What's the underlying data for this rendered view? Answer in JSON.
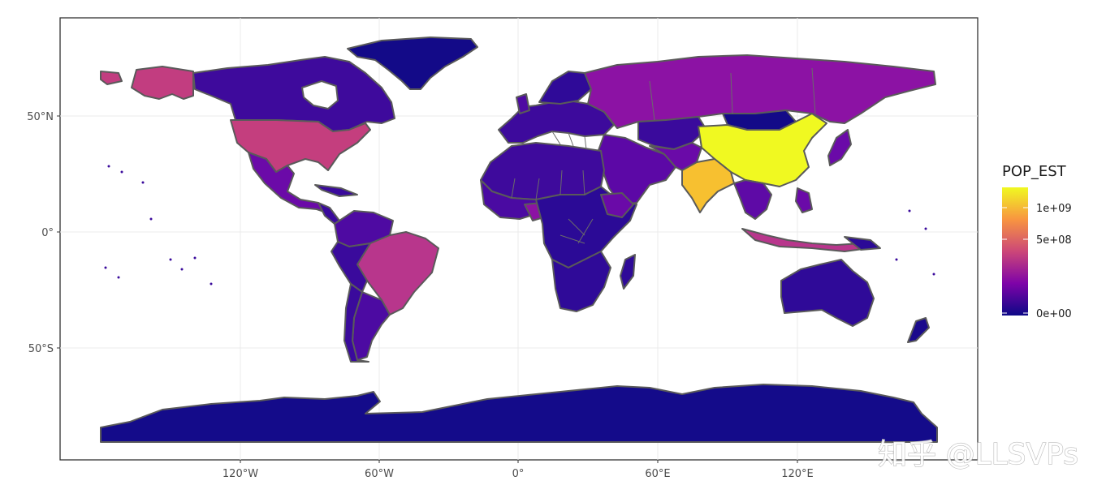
{
  "map": {
    "x_ticks": [
      "120°W",
      "60°W",
      "0°",
      "60°E",
      "120°E"
    ],
    "y_ticks": [
      "50°N",
      "0°",
      "50°S"
    ],
    "fill_variable": "POP_EST"
  },
  "legend": {
    "title": "POP_EST",
    "labels": [
      "1e+09",
      "5e+08",
      "0e+00"
    ],
    "gradient": [
      "#f0f921",
      "#f89540",
      "#cc4778",
      "#7e03a8",
      "#0d0887"
    ]
  },
  "colors": {
    "very_low": "#1a0a8c",
    "low": "#3b049a",
    "mid_low": "#5c01a6",
    "mid": "#8b0aa5",
    "high": "#c03a83",
    "india": "#f7c030",
    "china": "#f0f921"
  },
  "watermark": "知乎 @LLSVPs"
}
